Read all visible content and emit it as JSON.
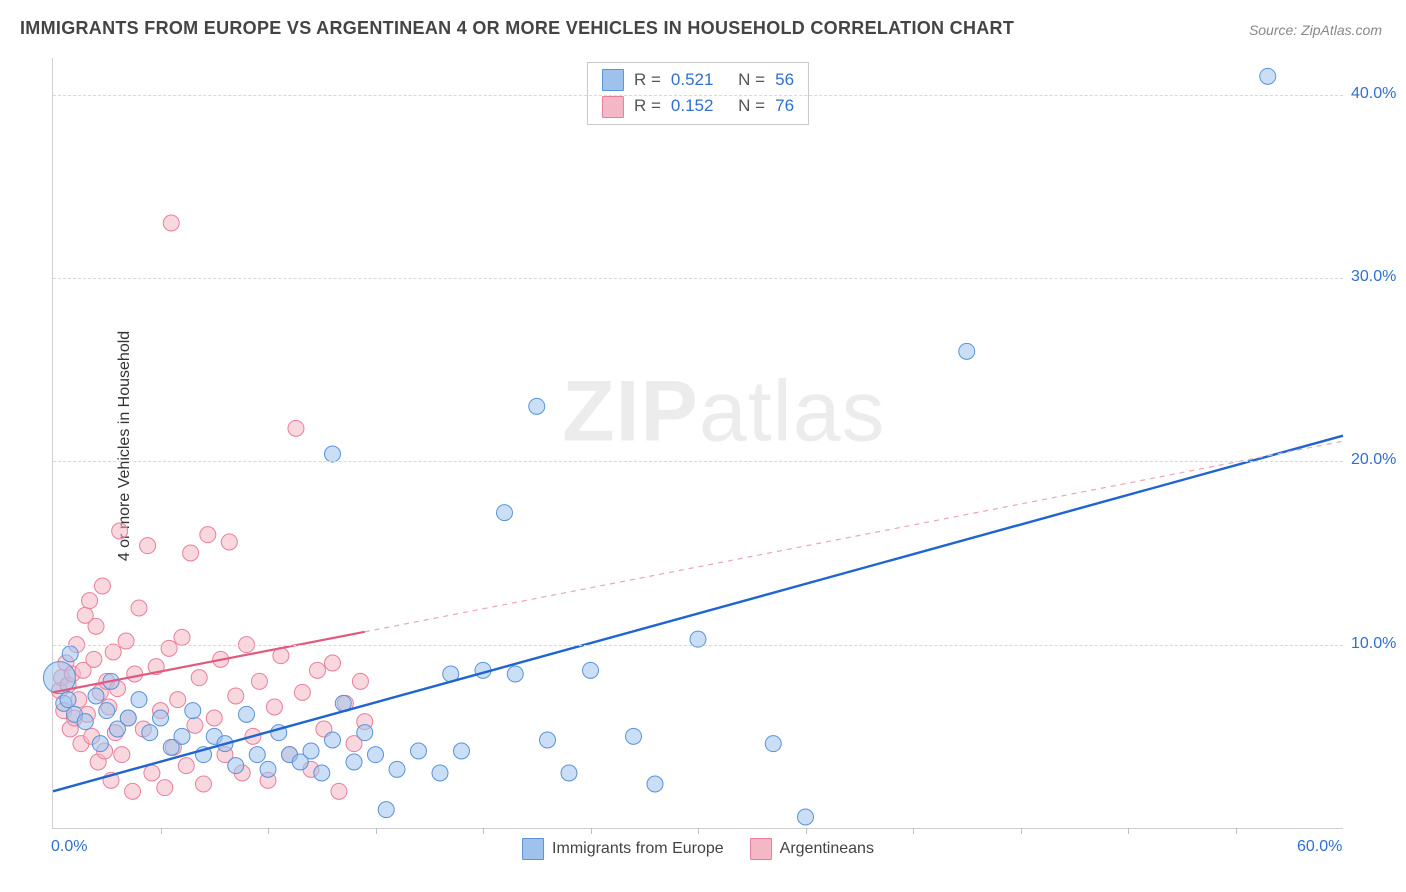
{
  "title": "IMMIGRANTS FROM EUROPE VS ARGENTINEAN 4 OR MORE VEHICLES IN HOUSEHOLD CORRELATION CHART",
  "source": "Source: ZipAtlas.com",
  "ylabel": "4 or more Vehicles in Household",
  "watermark": "ZIPatlas",
  "chart": {
    "type": "scatter",
    "xlim": [
      0,
      60
    ],
    "ylim": [
      0,
      42
    ],
    "yticks": [
      10,
      20,
      30,
      40
    ],
    "ytick_labels": [
      "10.0%",
      "20.0%",
      "30.0%",
      "40.0%"
    ],
    "x_minor_ticks": [
      5,
      10,
      15,
      20,
      25,
      30,
      35,
      40,
      45,
      50,
      55
    ],
    "xtick_labels": {
      "0": "0.0%",
      "60": "60.0%"
    },
    "background_color": "#ffffff",
    "grid_color": "#d8d8d8",
    "series": [
      {
        "name": "Immigrants from Europe",
        "legend_label": "Immigrants from Europe",
        "fill_color": "#9fc2ec",
        "stroke_color": "#5a93d6",
        "fill_opacity": 0.55,
        "marker_r": 8,
        "R": "0.521",
        "N": "56",
        "trend": {
          "x1": 0,
          "y1": 2.0,
          "x2": 60,
          "y2": 21.4,
          "color": "#1f64d0",
          "width": 2.4,
          "dash": "none"
        },
        "trend_ext": null,
        "points": [
          [
            0.3,
            8.2,
            16
          ],
          [
            0.5,
            6.8,
            8
          ],
          [
            0.7,
            7.0,
            8
          ],
          [
            0.8,
            9.5,
            8
          ],
          [
            1.0,
            6.2,
            8
          ],
          [
            1.5,
            5.8,
            8
          ],
          [
            2.0,
            7.2,
            8
          ],
          [
            2.2,
            4.6,
            8
          ],
          [
            2.5,
            6.4,
            8
          ],
          [
            2.7,
            8.0,
            8
          ],
          [
            3.0,
            5.4,
            8
          ],
          [
            3.5,
            6.0,
            8
          ],
          [
            4.0,
            7.0,
            8
          ],
          [
            4.5,
            5.2,
            8
          ],
          [
            5.0,
            6.0,
            8
          ],
          [
            5.5,
            4.4,
            8
          ],
          [
            6.0,
            5.0,
            8
          ],
          [
            6.5,
            6.4,
            8
          ],
          [
            7.0,
            4.0,
            8
          ],
          [
            7.5,
            5.0,
            8
          ],
          [
            8.0,
            4.6,
            8
          ],
          [
            8.5,
            3.4,
            8
          ],
          [
            9.0,
            6.2,
            8
          ],
          [
            9.5,
            4.0,
            8
          ],
          [
            10.0,
            3.2,
            8
          ],
          [
            10.5,
            5.2,
            8
          ],
          [
            11.0,
            4.0,
            8
          ],
          [
            11.5,
            3.6,
            8
          ],
          [
            12.0,
            4.2,
            8
          ],
          [
            12.5,
            3.0,
            8
          ],
          [
            13.0,
            4.8,
            8
          ],
          [
            13.5,
            6.8,
            8
          ],
          [
            14.0,
            3.6,
            8
          ],
          [
            14.5,
            5.2,
            8
          ],
          [
            15.0,
            4.0,
            8
          ],
          [
            15.5,
            1.0,
            8
          ],
          [
            16.0,
            3.2,
            8
          ],
          [
            17.0,
            4.2,
            8
          ],
          [
            18.0,
            3.0,
            8
          ],
          [
            18.5,
            8.4,
            8
          ],
          [
            19.0,
            4.2,
            8
          ],
          [
            20.0,
            8.6,
            8
          ],
          [
            21.0,
            17.2,
            8
          ],
          [
            21.5,
            8.4,
            8
          ],
          [
            22.5,
            23.0,
            8
          ],
          [
            23.0,
            4.8,
            8
          ],
          [
            24.0,
            3.0,
            8
          ],
          [
            25.0,
            8.6,
            8
          ],
          [
            27.0,
            5.0,
            8
          ],
          [
            28.0,
            2.4,
            8
          ],
          [
            30.0,
            10.3,
            8
          ],
          [
            33.5,
            4.6,
            8
          ],
          [
            35.0,
            0.6,
            8
          ],
          [
            42.5,
            26.0,
            8
          ],
          [
            56.5,
            41.0,
            8
          ],
          [
            13.0,
            20.4,
            8
          ]
        ]
      },
      {
        "name": "Argentineans",
        "legend_label": "Argentineans",
        "fill_color": "#f3b7c5",
        "stroke_color": "#e87f9b",
        "fill_opacity": 0.55,
        "marker_r": 8,
        "R": "0.152",
        "N": "76",
        "trend": {
          "x1": 0,
          "y1": 7.4,
          "x2": 14.5,
          "y2": 10.7,
          "color": "#e05a7e",
          "width": 2.2,
          "dash": "none"
        },
        "trend_ext": {
          "x1": 14.5,
          "y1": 10.7,
          "x2": 60,
          "y2": 21.1,
          "color": "#e9a6b6",
          "width": 1.2,
          "dash": "5,5"
        },
        "points": [
          [
            0.3,
            7.5,
            8
          ],
          [
            0.4,
            8.2,
            8
          ],
          [
            0.5,
            6.4,
            8
          ],
          [
            0.6,
            9.0,
            8
          ],
          [
            0.7,
            7.8,
            8
          ],
          [
            0.8,
            5.4,
            8
          ],
          [
            0.9,
            8.4,
            8
          ],
          [
            1.0,
            6.0,
            8
          ],
          [
            1.1,
            10.0,
            8
          ],
          [
            1.2,
            7.0,
            8
          ],
          [
            1.3,
            4.6,
            8
          ],
          [
            1.4,
            8.6,
            8
          ],
          [
            1.5,
            11.6,
            8
          ],
          [
            1.6,
            6.2,
            8
          ],
          [
            1.7,
            12.4,
            8
          ],
          [
            1.8,
            5.0,
            8
          ],
          [
            1.9,
            9.2,
            8
          ],
          [
            2.0,
            11.0,
            8
          ],
          [
            2.1,
            3.6,
            8
          ],
          [
            2.2,
            7.4,
            8
          ],
          [
            2.3,
            13.2,
            8
          ],
          [
            2.4,
            4.2,
            8
          ],
          [
            2.5,
            8.0,
            8
          ],
          [
            2.6,
            6.6,
            8
          ],
          [
            2.7,
            2.6,
            8
          ],
          [
            2.8,
            9.6,
            8
          ],
          [
            2.9,
            5.2,
            8
          ],
          [
            3.0,
            7.6,
            8
          ],
          [
            3.1,
            16.2,
            8
          ],
          [
            3.2,
            4.0,
            8
          ],
          [
            3.4,
            10.2,
            8
          ],
          [
            3.5,
            6.0,
            8
          ],
          [
            3.7,
            2.0,
            8
          ],
          [
            3.8,
            8.4,
            8
          ],
          [
            4.0,
            12.0,
            8
          ],
          [
            4.2,
            5.4,
            8
          ],
          [
            4.4,
            15.4,
            8
          ],
          [
            4.6,
            3.0,
            8
          ],
          [
            4.8,
            8.8,
            8
          ],
          [
            5.0,
            6.4,
            8
          ],
          [
            5.2,
            2.2,
            8
          ],
          [
            5.4,
            9.8,
            8
          ],
          [
            5.5,
            33.0,
            8
          ],
          [
            5.6,
            4.4,
            8
          ],
          [
            5.8,
            7.0,
            8
          ],
          [
            6.0,
            10.4,
            8
          ],
          [
            6.2,
            3.4,
            8
          ],
          [
            6.4,
            15.0,
            8
          ],
          [
            6.6,
            5.6,
            8
          ],
          [
            6.8,
            8.2,
            8
          ],
          [
            7.0,
            2.4,
            8
          ],
          [
            7.2,
            16.0,
            8
          ],
          [
            7.5,
            6.0,
            8
          ],
          [
            7.8,
            9.2,
            8
          ],
          [
            8.0,
            4.0,
            8
          ],
          [
            8.2,
            15.6,
            8
          ],
          [
            8.5,
            7.2,
            8
          ],
          [
            8.8,
            3.0,
            8
          ],
          [
            9.0,
            10.0,
            8
          ],
          [
            9.3,
            5.0,
            8
          ],
          [
            9.6,
            8.0,
            8
          ],
          [
            10.0,
            2.6,
            8
          ],
          [
            10.3,
            6.6,
            8
          ],
          [
            10.6,
            9.4,
            8
          ],
          [
            11.0,
            4.0,
            8
          ],
          [
            11.3,
            21.8,
            8
          ],
          [
            11.6,
            7.4,
            8
          ],
          [
            12.0,
            3.2,
            8
          ],
          [
            12.3,
            8.6,
            8
          ],
          [
            12.6,
            5.4,
            8
          ],
          [
            13.0,
            9.0,
            8
          ],
          [
            13.3,
            2.0,
            8
          ],
          [
            13.6,
            6.8,
            8
          ],
          [
            14.0,
            4.6,
            8
          ],
          [
            14.3,
            8.0,
            8
          ],
          [
            14.5,
            5.8,
            8
          ]
        ]
      }
    ]
  },
  "legend_top": {
    "r_label": "R =",
    "n_label": "N ="
  }
}
